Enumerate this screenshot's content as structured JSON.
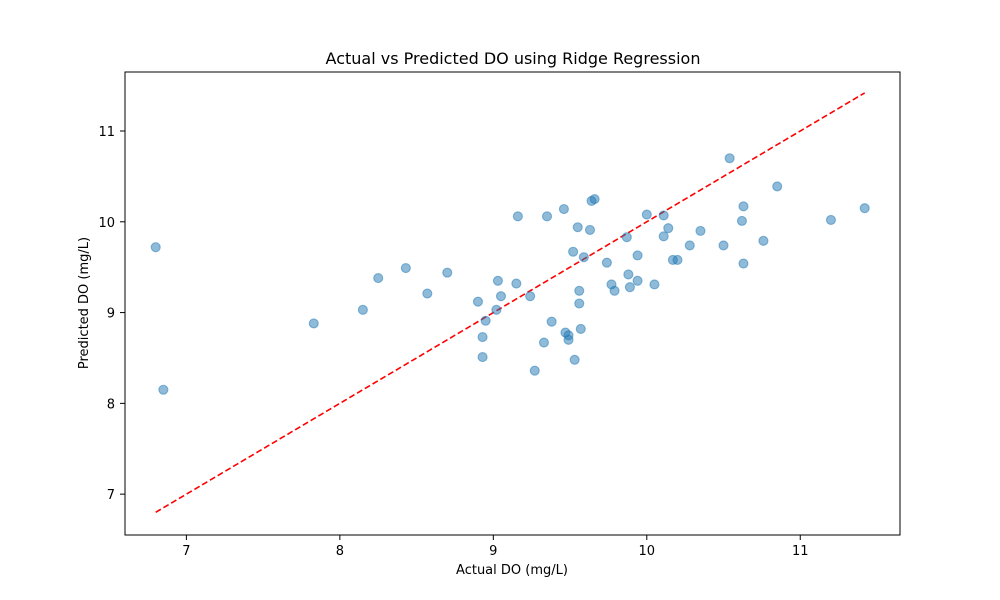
{
  "chart_data": {
    "type": "scatter",
    "title": "Actual vs Predicted DO using Ridge Regression",
    "xlabel": "Actual DO (mg/L)",
    "ylabel": "Predicted DO (mg/L)",
    "xlim": [
      6.6,
      11.65
    ],
    "ylim": [
      6.55,
      11.65
    ],
    "xticks": [
      7,
      8,
      9,
      10,
      11
    ],
    "yticks": [
      7,
      8,
      9,
      10,
      11
    ],
    "grid": false,
    "point_color": "#1f77b4",
    "point_alpha": 0.5,
    "reference_line": {
      "x": [
        6.8,
        11.42
      ],
      "y": [
        6.8,
        11.42
      ],
      "color": "#ff0000",
      "style": "dashed"
    },
    "points": [
      {
        "x": 6.8,
        "y": 9.72
      },
      {
        "x": 6.85,
        "y": 8.15
      },
      {
        "x": 7.83,
        "y": 8.88
      },
      {
        "x": 8.15,
        "y": 9.03
      },
      {
        "x": 8.25,
        "y": 9.38
      },
      {
        "x": 8.43,
        "y": 9.49
      },
      {
        "x": 8.57,
        "y": 9.21
      },
      {
        "x": 8.7,
        "y": 9.44
      },
      {
        "x": 8.9,
        "y": 9.12
      },
      {
        "x": 8.93,
        "y": 8.73
      },
      {
        "x": 8.93,
        "y": 8.51
      },
      {
        "x": 8.95,
        "y": 8.91
      },
      {
        "x": 9.02,
        "y": 9.03
      },
      {
        "x": 9.03,
        "y": 9.35
      },
      {
        "x": 9.05,
        "y": 9.18
      },
      {
        "x": 9.15,
        "y": 9.32
      },
      {
        "x": 9.16,
        "y": 10.06
      },
      {
        "x": 9.24,
        "y": 9.18
      },
      {
        "x": 9.27,
        "y": 8.36
      },
      {
        "x": 9.33,
        "y": 8.67
      },
      {
        "x": 9.35,
        "y": 10.06
      },
      {
        "x": 9.38,
        "y": 8.9
      },
      {
        "x": 9.46,
        "y": 10.14
      },
      {
        "x": 9.47,
        "y": 8.78
      },
      {
        "x": 9.49,
        "y": 8.75
      },
      {
        "x": 9.49,
        "y": 8.7
      },
      {
        "x": 9.52,
        "y": 9.67
      },
      {
        "x": 9.53,
        "y": 8.48
      },
      {
        "x": 9.55,
        "y": 9.94
      },
      {
        "x": 9.56,
        "y": 9.1
      },
      {
        "x": 9.56,
        "y": 9.24
      },
      {
        "x": 9.57,
        "y": 8.82
      },
      {
        "x": 9.59,
        "y": 9.61
      },
      {
        "x": 9.63,
        "y": 9.91
      },
      {
        "x": 9.64,
        "y": 10.23
      },
      {
        "x": 9.66,
        "y": 10.25
      },
      {
        "x": 9.74,
        "y": 9.55
      },
      {
        "x": 9.77,
        "y": 9.31
      },
      {
        "x": 9.79,
        "y": 9.24
      },
      {
        "x": 9.87,
        "y": 9.83
      },
      {
        "x": 9.88,
        "y": 9.42
      },
      {
        "x": 9.89,
        "y": 9.28
      },
      {
        "x": 9.94,
        "y": 9.63
      },
      {
        "x": 9.94,
        "y": 9.35
      },
      {
        "x": 10.0,
        "y": 10.08
      },
      {
        "x": 10.05,
        "y": 9.31
      },
      {
        "x": 10.11,
        "y": 10.07
      },
      {
        "x": 10.11,
        "y": 9.84
      },
      {
        "x": 10.14,
        "y": 9.93
      },
      {
        "x": 10.17,
        "y": 9.58
      },
      {
        "x": 10.2,
        "y": 9.58
      },
      {
        "x": 10.28,
        "y": 9.74
      },
      {
        "x": 10.35,
        "y": 9.9
      },
      {
        "x": 10.5,
        "y": 9.74
      },
      {
        "x": 10.54,
        "y": 10.7
      },
      {
        "x": 10.62,
        "y": 10.01
      },
      {
        "x": 10.63,
        "y": 10.17
      },
      {
        "x": 10.63,
        "y": 9.54
      },
      {
        "x": 10.76,
        "y": 9.79
      },
      {
        "x": 10.85,
        "y": 10.39
      },
      {
        "x": 11.2,
        "y": 10.02
      },
      {
        "x": 11.42,
        "y": 10.15
      }
    ]
  }
}
